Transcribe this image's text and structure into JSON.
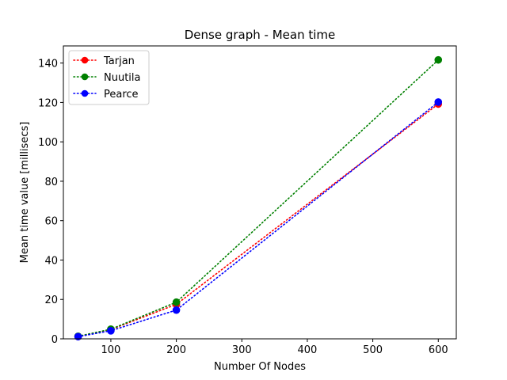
{
  "chart_data": {
    "type": "line",
    "title": "Dense graph - Mean time",
    "xlabel": "Number Of Nodes",
    "ylabel": "Mean time value [millisecs]",
    "xlim": [
      27.5,
      627.5
    ],
    "ylim": [
      0,
      148.7
    ],
    "xticks": [
      100,
      200,
      300,
      400,
      500,
      600
    ],
    "yticks": [
      0,
      20,
      40,
      60,
      80,
      100,
      120,
      140
    ],
    "grid": false,
    "legend_position": "upper-left",
    "line_style": "dotted",
    "marker": "circle",
    "series": [
      {
        "name": "Tarjan",
        "color": "#ff0000",
        "x": [
          50,
          100,
          200,
          600
        ],
        "y": [
          1.2,
          4.7,
          17.5,
          119.2
        ]
      },
      {
        "name": "Nuutila",
        "color": "#008000",
        "x": [
          50,
          100,
          200,
          600
        ],
        "y": [
          1.3,
          4.9,
          18.6,
          141.6
        ]
      },
      {
        "name": "Pearce",
        "color": "#0000ff",
        "x": [
          50,
          100,
          200,
          600
        ],
        "y": [
          1.1,
          4.1,
          14.6,
          120.2
        ]
      }
    ]
  }
}
